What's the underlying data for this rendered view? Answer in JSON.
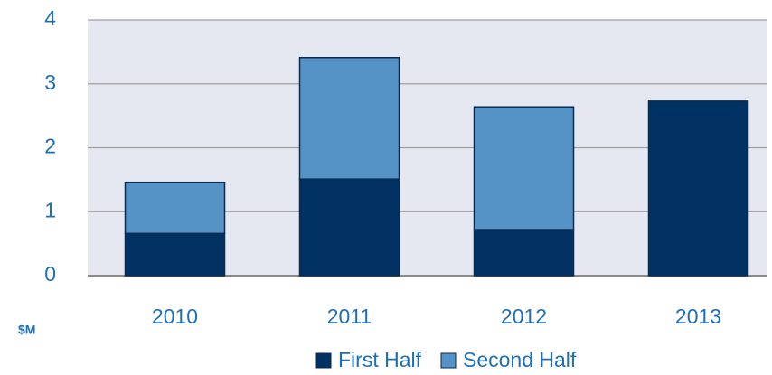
{
  "chart_data": {
    "type": "stacked_bar",
    "y_label": "$M",
    "categories": [
      "2010",
      "2011",
      "2012",
      "2013"
    ],
    "series": [
      {
        "name": "First Half",
        "color": "#003163",
        "values": [
          0.66,
          1.51,
          0.72,
          2.73
        ]
      },
      {
        "name": "Second Half",
        "color": "#5593c6",
        "values": [
          0.8,
          1.9,
          1.92,
          0
        ]
      }
    ],
    "ylim": [
      0,
      4
    ],
    "yticks": [
      0,
      1,
      2,
      3,
      4
    ],
    "grid": true
  }
}
